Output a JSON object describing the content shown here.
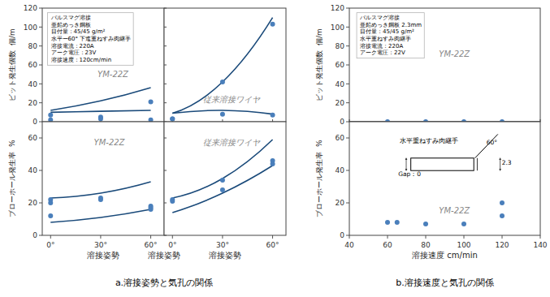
{
  "chart_data": [
    {
      "type": "line",
      "xlim": [
        -5,
        68
      ],
      "xticks": [
        {
          "value": 0,
          "label": "0°"
        },
        {
          "value": 30,
          "label": "30°"
        },
        {
          "value": 60,
          "label": "60°"
        }
      ],
      "ylim": [
        0,
        120
      ],
      "yticks": [
        0,
        20,
        40,
        60,
        80,
        100,
        120
      ],
      "tick_labels": "y",
      "y_label": "ビット発生個数  個/m",
      "annotations": [
        "YM-22Z"
      ],
      "info_text": [
        "パルスマグ溶接",
        "亜鉛めっき鋼板",
        "目付量：45/45 g/m²",
        "水平ー60° 下進重ねすみ肉継手",
        "溶接電流：220A",
        "アーク電圧：23V",
        "溶接速度：120cm/min"
      ],
      "series": [
        {
          "type": "line",
          "color": "#1a4a7a",
          "x": [
            0,
            30,
            60
          ],
          "values": [
            12,
            22,
            36
          ]
        },
        {
          "type": "line",
          "color": "#1a4a7a",
          "x": [
            0,
            30,
            60
          ],
          "values": [
            10,
            11,
            12
          ]
        },
        {
          "type": "scatter",
          "color": "#4a7fbb",
          "x": [
            0,
            30,
            60
          ],
          "values": [
            7,
            5,
            21
          ]
        },
        {
          "type": "scatter",
          "color": "#4a7fbb",
          "x": [
            0,
            30,
            60
          ],
          "values": [
            2,
            3,
            2
          ]
        }
      ]
    },
    {
      "type": "line",
      "xlim": [
        -5,
        68
      ],
      "xticks": [
        {
          "value": 0,
          "label": "0°"
        },
        {
          "value": 30,
          "label": "30°"
        },
        {
          "value": 60,
          "label": "60°"
        }
      ],
      "ylim": [
        0,
        120
      ],
      "yticks": [
        0,
        20,
        40,
        60,
        80,
        100,
        120
      ],
      "tick_labels": false,
      "annotations": [
        "従来溶接ワイヤ"
      ],
      "series": [
        {
          "type": "line",
          "color": "#1a4a7a",
          "x": [
            0,
            30,
            60
          ],
          "values": [
            9,
            42,
            110
          ]
        },
        {
          "type": "line",
          "color": "#1a4a7a",
          "x": [
            0,
            30,
            60
          ],
          "values": [
            9,
            12,
            8
          ]
        },
        {
          "type": "scatter",
          "color": "#4a7fbb",
          "x": [
            0,
            30,
            60
          ],
          "values": [
            3,
            42,
            103
          ]
        },
        {
          "type": "scatter",
          "color": "#4a7fbb",
          "x": [
            0,
            30,
            60
          ],
          "values": [
            3,
            8,
            7
          ]
        }
      ]
    },
    {
      "type": "line",
      "xlim": [
        -5,
        68
      ],
      "xticks": [
        {
          "value": 0,
          "label": "0°"
        },
        {
          "value": 30,
          "label": "30°"
        },
        {
          "value": 60,
          "label": "60°"
        }
      ],
      "ylim": [
        0,
        70
      ],
      "yticks": [
        0,
        20,
        40,
        60
      ],
      "y_label": "ブローホール発生率  %",
      "x_label": "溶接姿勢",
      "panel_x_label": "溶接姿勢",
      "caption": "a.溶接姿勢と気孔の関係",
      "annotations": [
        "YM-22Z"
      ],
      "series": [
        {
          "type": "line",
          "color": "#1a4a7a",
          "x": [
            0,
            30,
            60
          ],
          "values": [
            23,
            26,
            33
          ]
        },
        {
          "type": "line",
          "color": "#1a4a7a",
          "x": [
            0,
            30,
            60
          ],
          "values": [
            8,
            11,
            16
          ]
        },
        {
          "type": "scatter",
          "color": "#4a7fbb",
          "x": [
            0,
            0,
            30,
            60,
            60
          ],
          "values": [
            22,
            20,
            23,
            18,
            16
          ]
        },
        {
          "type": "scatter",
          "color": "#4a7fbb",
          "x": [
            0,
            30,
            60
          ],
          "values": [
            12,
            22,
            17
          ]
        }
      ]
    },
    {
      "type": "line",
      "xlim": [
        -5,
        68
      ],
      "xticks": [
        {
          "value": 0,
          "label": "0°"
        },
        {
          "value": 30,
          "label": "30°"
        },
        {
          "value": 60,
          "label": "60°"
        }
      ],
      "ylim": [
        0,
        70
      ],
      "yticks": [
        0,
        20,
        40,
        60
      ],
      "tick_labels": "x",
      "x_label": "溶接姿勢",
      "annotations": [
        "従来溶接ワイヤ"
      ],
      "series": [
        {
          "type": "line",
          "color": "#1a4a7a",
          "x": [
            0,
            30,
            60
          ],
          "values": [
            23,
            35,
            59
          ]
        },
        {
          "type": "line",
          "color": "#1a4a7a",
          "x": [
            0,
            30,
            60
          ],
          "values": [
            14,
            26,
            43
          ]
        },
        {
          "type": "scatter",
          "color": "#4a7fbb",
          "x": [
            0,
            0,
            30,
            60
          ],
          "values": [
            22,
            21,
            34,
            46
          ]
        },
        {
          "type": "scatter",
          "color": "#4a7fbb",
          "x": [
            30,
            60
          ],
          "values": [
            28,
            44
          ]
        }
      ]
    },
    {
      "type": "scatter",
      "xlim": [
        40,
        140
      ],
      "xticks": [
        40,
        60,
        80,
        100,
        120,
        140
      ],
      "ylim": [
        0,
        120
      ],
      "yticks": [
        0,
        20,
        40,
        60,
        80,
        100,
        120
      ],
      "tick_labels": "y",
      "y_label": "ビット発生個数  個/m",
      "annotations": [
        "YM-22Z"
      ],
      "reference_line": 0,
      "info_text": [
        "パルスマグ溶接",
        "亜鉛めっき鋼板 2.3mm",
        "目付量：45/45 g/m²",
        "水平重ねすみ肉継手",
        "溶接電流：220A",
        "アーク電圧：22V"
      ],
      "series": [
        {
          "type": "scatter",
          "color": "#4a7fbb",
          "x": [
            60,
            80,
            100,
            120
          ],
          "values": [
            0,
            0,
            0,
            0
          ]
        }
      ]
    },
    {
      "type": "scatter",
      "xlim": [
        40,
        140
      ],
      "xticks": [
        40,
        60,
        80,
        100,
        120,
        140
      ],
      "ylim": [
        0,
        70
      ],
      "yticks": [
        0,
        20,
        40,
        60
      ],
      "y_label": "ブローホール発生率  %",
      "x_label": "溶接速度 cm/min",
      "caption": "b.溶接速度と気孔の関係",
      "annotations": [
        "YM-22Z"
      ],
      "inset": {
        "title": "水平重ねすみ肉継手",
        "labels": [
          "Gap：0",
          "60°",
          "2.3"
        ]
      },
      "series": [
        {
          "type": "scatter",
          "color": "#4a7fbb",
          "x": [
            60,
            65,
            80,
            100,
            120,
            120
          ],
          "values": [
            8,
            8,
            7,
            7,
            20,
            12
          ]
        }
      ]
    }
  ]
}
